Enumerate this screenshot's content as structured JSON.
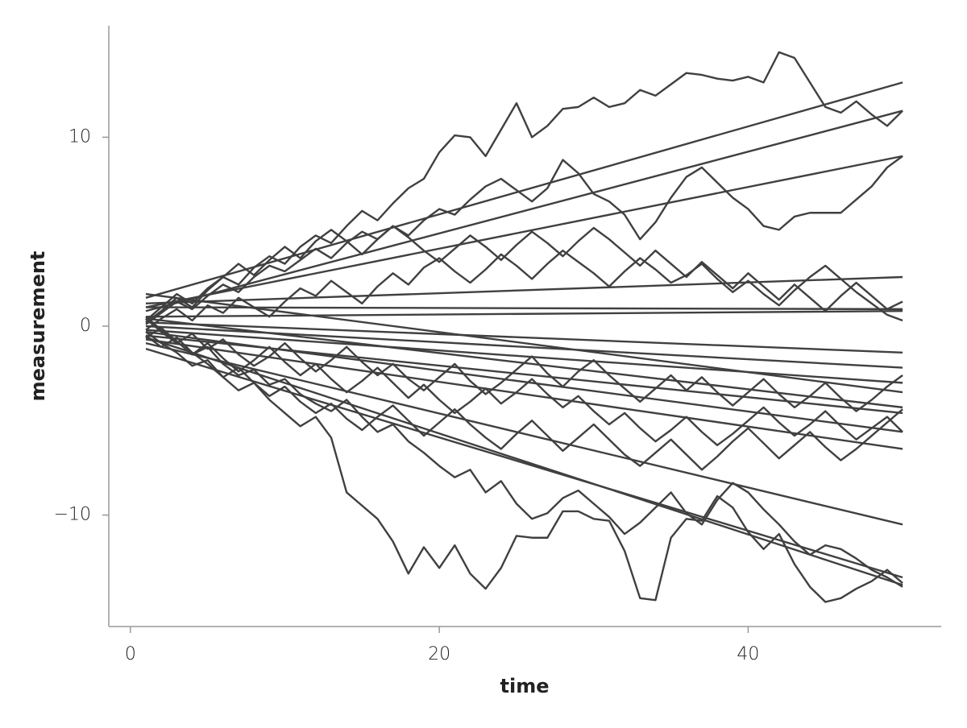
{
  "chart_data": {
    "type": "line",
    "xlabel": "time",
    "ylabel": "measurement",
    "color": "#404040",
    "grid": false,
    "xlim": [
      -1.4,
      52.5
    ],
    "ylim": [
      -15.9,
      15.9
    ],
    "xticks": [
      0,
      20,
      40
    ],
    "yticks": [
      {
        "value": -10,
        "label": "−10"
      },
      0,
      10
    ],
    "x": [
      1,
      2,
      3,
      4,
      5,
      6,
      7,
      8,
      9,
      10,
      11,
      12,
      13,
      14,
      15,
      16,
      17,
      18,
      19,
      20,
      21,
      22,
      23,
      24,
      25,
      26,
      27,
      28,
      29,
      30,
      31,
      32,
      33,
      34,
      35,
      36,
      37,
      38,
      39,
      40,
      41,
      42,
      43,
      44,
      45,
      46,
      47,
      48,
      49,
      50
    ],
    "series": [
      {
        "values": [
          0.2,
          0.8,
          1.5,
          1.0,
          1.9,
          2.6,
          2.2,
          3.1,
          3.7,
          3.3,
          4.2,
          4.8,
          4.4,
          5.3,
          6.1,
          5.6,
          6.5,
          7.3,
          7.8,
          9.2,
          10.1,
          10.0,
          9.0,
          10.4,
          11.8,
          10.0,
          10.6,
          11.5,
          11.6,
          12.1,
          11.6,
          11.8,
          12.5,
          12.2,
          12.8,
          13.4,
          13.3,
          13.1,
          13.0,
          13.2,
          12.9,
          14.5,
          14.2,
          12.9,
          11.6,
          11.3,
          11.9,
          11.2,
          10.6,
          11.4
        ]
      },
      {
        "values": [
          -0.3,
          -0.9,
          -1.4,
          -2.1,
          -1.8,
          -2.7,
          -3.4,
          -3.0,
          -3.9,
          -4.6,
          -5.3,
          -4.8,
          -5.9,
          -8.8,
          -9.5,
          -10.2,
          -11.4,
          -13.1,
          -11.7,
          -12.8,
          -11.6,
          -13.1,
          -13.9,
          -12.8,
          -11.1,
          -11.2,
          -11.2,
          -9.8,
          -9.8,
          -10.2,
          -10.3,
          -11.9,
          -14.4,
          -14.5,
          -11.2,
          -10.2,
          -10.3,
          -9.0,
          -9.6,
          -10.9,
          -11.8,
          -11.0,
          -12.6,
          -13.8,
          -14.6,
          -14.4,
          -13.9,
          -13.5,
          -12.9,
          -13.6
        ]
      },
      {
        "values": [
          0.5,
          -0.2,
          -0.8,
          -1.5,
          -1.1,
          -2.0,
          -2.6,
          -2.3,
          -3.1,
          -2.8,
          -3.6,
          -4.1,
          -4.5,
          -3.9,
          -4.8,
          -5.6,
          -5.2,
          -6.1,
          -6.7,
          -7.4,
          -8.0,
          -7.6,
          -8.8,
          -8.2,
          -9.4,
          -10.2,
          -9.9,
          -9.1,
          -8.7,
          -9.4,
          -10.1,
          -11.0,
          -10.4,
          -9.6,
          -8.8,
          -9.9,
          -10.5,
          -9.2,
          -8.3,
          -8.8,
          -9.7,
          -10.5,
          -11.4,
          -12.1,
          -11.6,
          -11.8,
          -12.3,
          -12.9,
          -13.3,
          -13.8
        ]
      },
      {
        "values": [
          0.1,
          0.7,
          1.3,
          0.9,
          1.6,
          2.2,
          1.8,
          2.6,
          3.2,
          2.9,
          3.5,
          4.1,
          3.6,
          4.4,
          5.0,
          4.6,
          5.3,
          4.8,
          5.6,
          6.2,
          5.9,
          6.7,
          7.4,
          7.8,
          7.2,
          6.6,
          7.3,
          8.8,
          8.1,
          7.0,
          6.6,
          5.9,
          4.6,
          5.5,
          6.8,
          7.9,
          8.4,
          7.6,
          6.8,
          6.2,
          5.3,
          5.1,
          5.8,
          6.0,
          6.0,
          6.0,
          6.7,
          7.4,
          8.4,
          9.0
        ]
      },
      {
        "values": [
          -0.2,
          0.4,
          0.9,
          0.3,
          1.1,
          0.7,
          1.5,
          1.0,
          0.5,
          1.3,
          2.0,
          1.6,
          2.4,
          1.8,
          1.2,
          2.1,
          2.8,
          2.2,
          3.1,
          3.6,
          2.9,
          2.3,
          3.0,
          3.8,
          3.2,
          2.5,
          3.3,
          4.0,
          3.4,
          2.8,
          2.1,
          2.9,
          3.6,
          3.0,
          2.3,
          2.7,
          3.3,
          2.5,
          1.8,
          2.4,
          1.7,
          1.1,
          1.9,
          2.6,
          3.2,
          2.5,
          1.8,
          1.2,
          0.6,
          0.3
        ]
      },
      {
        "values": [
          0.4,
          -0.3,
          -0.9,
          -0.4,
          -1.2,
          -0.7,
          -1.5,
          -2.1,
          -1.6,
          -0.9,
          -1.7,
          -2.4,
          -1.8,
          -1.1,
          -1.9,
          -2.6,
          -2.0,
          -2.8,
          -3.4,
          -2.7,
          -2.0,
          -2.9,
          -3.6,
          -3.0,
          -2.3,
          -1.6,
          -2.5,
          -3.2,
          -2.4,
          -1.8,
          -2.6,
          -3.3,
          -4.0,
          -3.3,
          -2.6,
          -3.4,
          -2.7,
          -3.5,
          -4.2,
          -3.5,
          -2.8,
          -3.6,
          -4.3,
          -3.7,
          -3.0,
          -3.8,
          -4.5,
          -3.9,
          -3.2,
          -2.6
        ]
      },
      {
        "values": [
          -0.5,
          -1.1,
          -0.6,
          -1.4,
          -2.0,
          -2.7,
          -2.2,
          -3.0,
          -3.7,
          -3.2,
          -4.0,
          -4.6,
          -4.1,
          -4.9,
          -5.5,
          -4.8,
          -4.2,
          -5.0,
          -5.8,
          -5.1,
          -4.4,
          -5.2,
          -5.9,
          -6.5,
          -5.7,
          -5.0,
          -5.8,
          -6.6,
          -5.9,
          -5.2,
          -6.0,
          -6.8,
          -7.4,
          -6.7,
          -6.0,
          -6.8,
          -7.6,
          -6.9,
          -6.1,
          -5.4,
          -6.2,
          -7.0,
          -6.3,
          -5.6,
          -6.4,
          -7.1,
          -6.5,
          -5.8,
          -5.1,
          -4.4
        ]
      },
      {
        "values": [
          0.3,
          1.0,
          1.7,
          1.2,
          2.0,
          2.6,
          3.3,
          2.7,
          3.5,
          4.2,
          3.6,
          4.5,
          5.1,
          4.5,
          3.8,
          4.6,
          5.3,
          4.7,
          4.0,
          3.4,
          4.1,
          4.8,
          4.2,
          3.5,
          4.3,
          5.0,
          4.4,
          3.7,
          4.5,
          5.2,
          4.6,
          3.9,
          3.2,
          4.0,
          3.3,
          2.6,
          3.4,
          2.7,
          2.0,
          2.8,
          2.1,
          1.4,
          2.2,
          1.5,
          0.8,
          1.6,
          2.3,
          1.6,
          0.9,
          1.3
        ]
      },
      {
        "values": [
          -0.6,
          -0.1,
          -0.8,
          -1.5,
          -0.9,
          -1.7,
          -2.4,
          -1.8,
          -1.1,
          -1.9,
          -2.6,
          -2.0,
          -2.8,
          -3.5,
          -2.9,
          -2.2,
          -3.0,
          -3.8,
          -3.1,
          -3.9,
          -4.6,
          -4.0,
          -3.3,
          -4.1,
          -3.5,
          -2.8,
          -3.6,
          -4.3,
          -3.7,
          -4.5,
          -5.2,
          -4.6,
          -5.4,
          -6.1,
          -5.5,
          -4.8,
          -5.6,
          -6.3,
          -5.7,
          -5.0,
          -4.3,
          -5.1,
          -5.8,
          -5.2,
          -4.5,
          -5.3,
          -6.0,
          -5.4,
          -4.8,
          -5.6
        ]
      },
      {
        "x": [
          1,
          50
        ],
        "values": [
          1.5,
          12.9
        ]
      },
      {
        "x": [
          1,
          50
        ],
        "values": [
          0.8,
          11.4
        ]
      },
      {
        "x": [
          1,
          50
        ],
        "values": [
          1.0,
          9.0
        ]
      },
      {
        "x": [
          1,
          50
        ],
        "values": [
          1.2,
          2.6
        ]
      },
      {
        "x": [
          1,
          50
        ],
        "values": [
          1.0,
          0.9
        ]
      },
      {
        "x": [
          1,
          50
        ],
        "values": [
          0.5,
          0.8
        ]
      },
      {
        "x": [
          1,
          50
        ],
        "values": [
          0.2,
          -1.4
        ]
      },
      {
        "x": [
          1,
          50
        ],
        "values": [
          0.0,
          -2.2
        ]
      },
      {
        "x": [
          1,
          50
        ],
        "values": [
          -0.2,
          -3.0
        ]
      },
      {
        "x": [
          1,
          50
        ],
        "values": [
          0.4,
          -4.3
        ]
      },
      {
        "x": [
          1,
          50
        ],
        "values": [
          -0.5,
          -4.6
        ]
      },
      {
        "x": [
          1,
          50
        ],
        "values": [
          -0.3,
          -5.6
        ]
      },
      {
        "x": [
          1,
          50
        ],
        "values": [
          -0.7,
          -6.5
        ]
      },
      {
        "x": [
          1,
          50
        ],
        "values": [
          -0.9,
          -10.5
        ]
      },
      {
        "x": [
          1,
          50
        ],
        "values": [
          -1.2,
          -13.3
        ]
      },
      {
        "x": [
          1,
          50
        ],
        "values": [
          -0.6,
          -13.7
        ]
      },
      {
        "x": [
          1,
          50
        ],
        "values": [
          1.7,
          -3.5
        ]
      }
    ]
  }
}
